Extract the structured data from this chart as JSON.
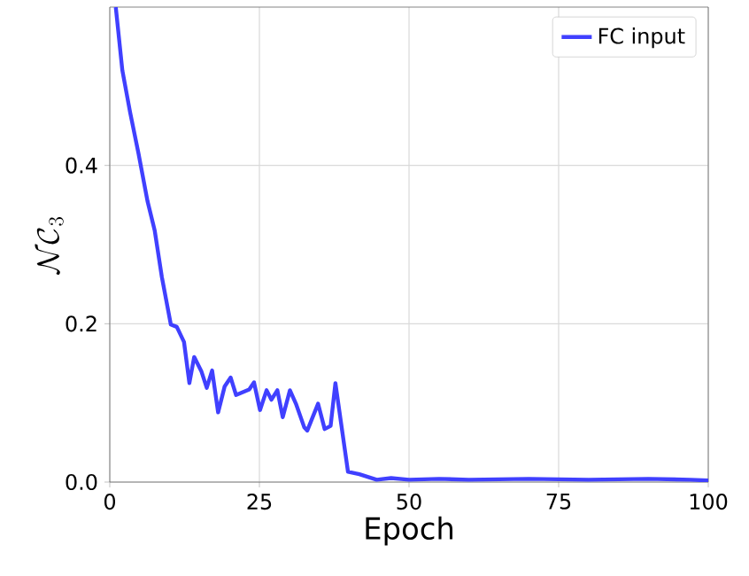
{
  "chart_data": {
    "type": "line",
    "xlabel": "Epoch",
    "ylabel": "\\mathcal{NC}_3",
    "xlim": [
      0,
      100
    ],
    "ylim": [
      0,
      0.6
    ],
    "xticks": [
      0,
      25,
      50,
      75,
      100
    ],
    "yticks": [
      {
        "value": 0,
        "label": "0.0"
      },
      {
        "value": 0.2,
        "label": "0.2"
      },
      {
        "value": 0.4,
        "label": "0.4"
      }
    ],
    "grid": true,
    "legend": "top right",
    "series": [
      {
        "name": "FC input",
        "color": "#4040ff",
        "x": [
          1,
          2.1,
          3.4,
          4.8,
          6.3,
          7.5,
          8.7,
          10.2,
          11.2,
          12.4,
          13.3,
          14.1,
          15.3,
          16.2,
          17.1,
          18.1,
          19.2,
          20.2,
          21.1,
          23.3,
          24.1,
          25.1,
          26.2,
          27,
          28,
          28.9,
          30.1,
          31.1,
          32.5,
          33,
          34.8,
          35.9,
          36.9,
          37.7,
          39.8,
          41.7,
          44.6,
          47,
          50,
          55,
          60,
          70,
          80,
          90,
          97,
          100
        ],
        "values": [
          0.6,
          0.52,
          0.467,
          0.415,
          0.355,
          0.318,
          0.259,
          0.199,
          0.196,
          0.177,
          0.125,
          0.158,
          0.14,
          0.119,
          0.141,
          0.088,
          0.121,
          0.132,
          0.11,
          0.117,
          0.126,
          0.091,
          0.116,
          0.104,
          0.116,
          0.082,
          0.116,
          0.099,
          0.069,
          0.065,
          0.099,
          0.067,
          0.071,
          0.125,
          0.013,
          0.01,
          0.003,
          0.005,
          0.003,
          0.004,
          0.003,
          0.004,
          0.003,
          0.004,
          0.003,
          0.002
        ]
      }
    ]
  }
}
